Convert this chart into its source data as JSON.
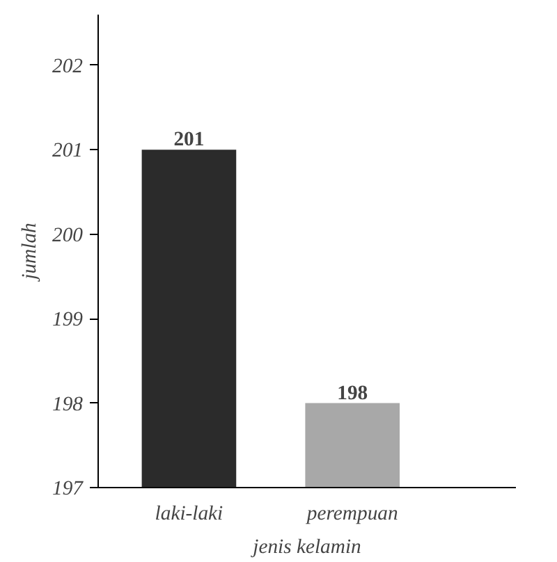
{
  "chart_data": {
    "type": "bar",
    "xlabel": "jenis kelamin",
    "ylabel": "jumlah",
    "categories": [
      "laki-laki",
      "perempuan"
    ],
    "values": [
      201,
      198
    ],
    "colors": [
      "#2b2b2b",
      "#a8a8a8"
    ],
    "ylim": [
      197,
      202.6
    ],
    "yticks": [
      197,
      198,
      199,
      200,
      201,
      202
    ],
    "data_labels": true,
    "grid": false
  }
}
